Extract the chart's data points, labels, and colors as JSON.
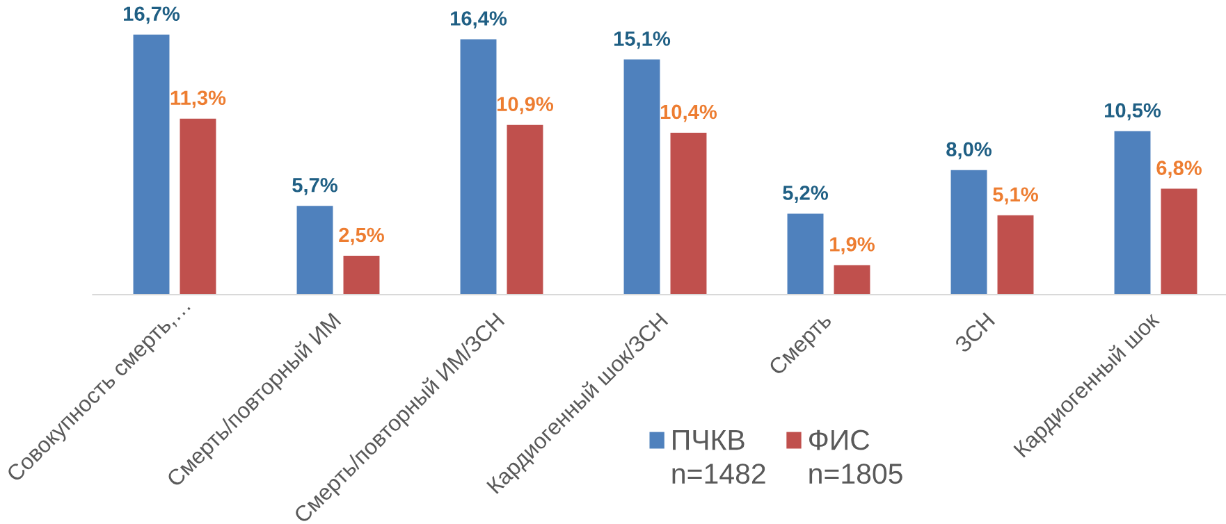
{
  "chart_data": {
    "type": "bar",
    "categories": [
      "Совокупность смерть,…",
      "Смерть/повторный ИМ",
      "Смерть/повторный ИМ/ЗСН",
      "Кардиогенный шок/ЗСН",
      "Смерть",
      "ЗСН",
      "Кардиогенный шок"
    ],
    "series": [
      {
        "name": "ПЧКВ\nn=1482",
        "color": "#4f81bd",
        "values": [
          16.7,
          5.7,
          16.4,
          15.1,
          5.2,
          8.0,
          10.5
        ],
        "value_labels": [
          "16,7%",
          "5,7%",
          "16,4%",
          "15,1%",
          "5,2%",
          "8,0%",
          "10,5%"
        ]
      },
      {
        "name": "ФИС\nn=1805",
        "color": "#c0504d",
        "values": [
          11.3,
          2.5,
          10.9,
          10.4,
          1.9,
          5.1,
          6.8
        ],
        "value_labels": [
          "11,3%",
          "2,5%",
          "10,9%",
          "10,4%",
          "1,9%",
          "5,1%",
          "6,8%"
        ]
      }
    ],
    "tick_labels": "x",
    "legend": "bottom"
  }
}
